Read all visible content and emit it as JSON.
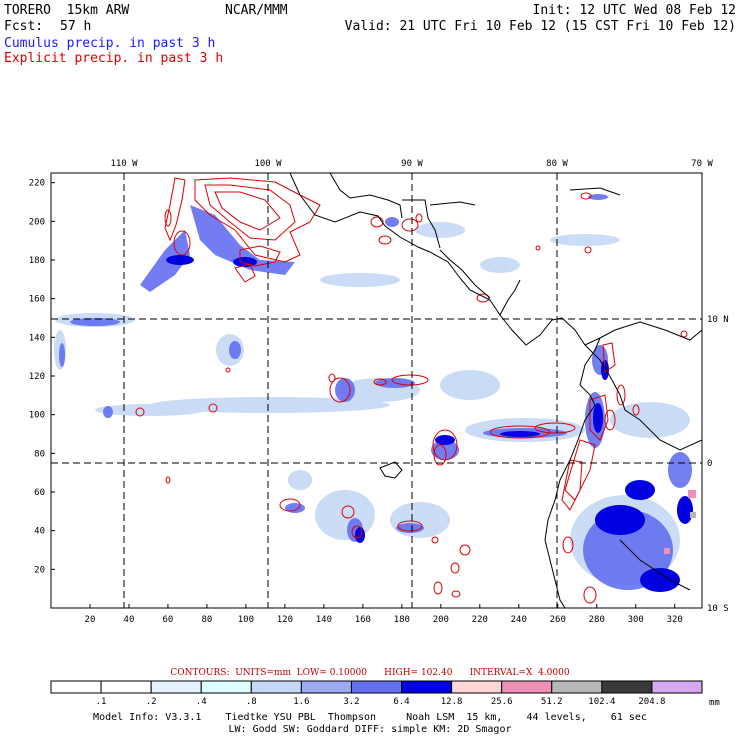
{
  "header": {
    "model": "TORERO  15km ARW",
    "org": "NCAR/MMM",
    "init": "Init: 12 UTC Wed 08 Feb 12",
    "fcst_label": "Fcst:",
    "fcst_hours": "57 h",
    "valid": "Valid: 21 UTC Fri 10 Feb 12 (15 CST Fri 10 Feb 12)",
    "field1": "Cumulus precip. in past 3 h",
    "field2": "Explicit precip. in past 3 h"
  },
  "colors": {
    "field1": "#1a1aff",
    "field2": "#dd0000",
    "contour_text": "#c00000",
    "coast": "#000000"
  },
  "map": {
    "lon_labels": [
      "110 W",
      "100 W",
      "90 W",
      "80 W",
      "70 W"
    ],
    "lat_labels": [
      "10 N",
      "0",
      "10 S"
    ],
    "x_ticks": [
      "20",
      "40",
      "60",
      "80",
      "100",
      "120",
      "140",
      "160",
      "180",
      "200",
      "220",
      "240",
      "260",
      "280",
      "300",
      "320"
    ],
    "y_ticks": [
      "20",
      "40",
      "60",
      "80",
      "100",
      "120",
      "140",
      "160",
      "180",
      "200",
      "220"
    ],
    "x_range": [
      0,
      334
    ],
    "y_range": [
      0,
      225
    ]
  },
  "contours_line": "CONTOURS:  UNITS=mm  LOW= 0.10000      HIGH= 102.40      INTERVAL=X  4.0000",
  "legend": {
    "values": [
      ".1",
      ".2",
      ".4",
      ".8",
      "1.6",
      "3.2",
      "6.4",
      "12.8",
      "25.6",
      "51.2",
      "102.4",
      "204.8"
    ],
    "unit": "mm",
    "colors": [
      "#ffffff",
      "#ffffff",
      "#e6f2ff",
      "#e0ffff",
      "#c4d8f5",
      "#9fa8f4",
      "#6470f0",
      "#0000e0",
      "#ffd6d6",
      "#f08fb8",
      "#b8b8b8",
      "#3a3a3a",
      "#d6a8f2"
    ]
  },
  "footer": {
    "line1": "Model Info: V3.3.1    Tiedtke YSU PBL  Thompson     Noah LSM  15 km,    44 levels,    61 sec",
    "line2": "LW: Godd SW: Goddard DIFF: simple KM: 2D Smagor"
  }
}
